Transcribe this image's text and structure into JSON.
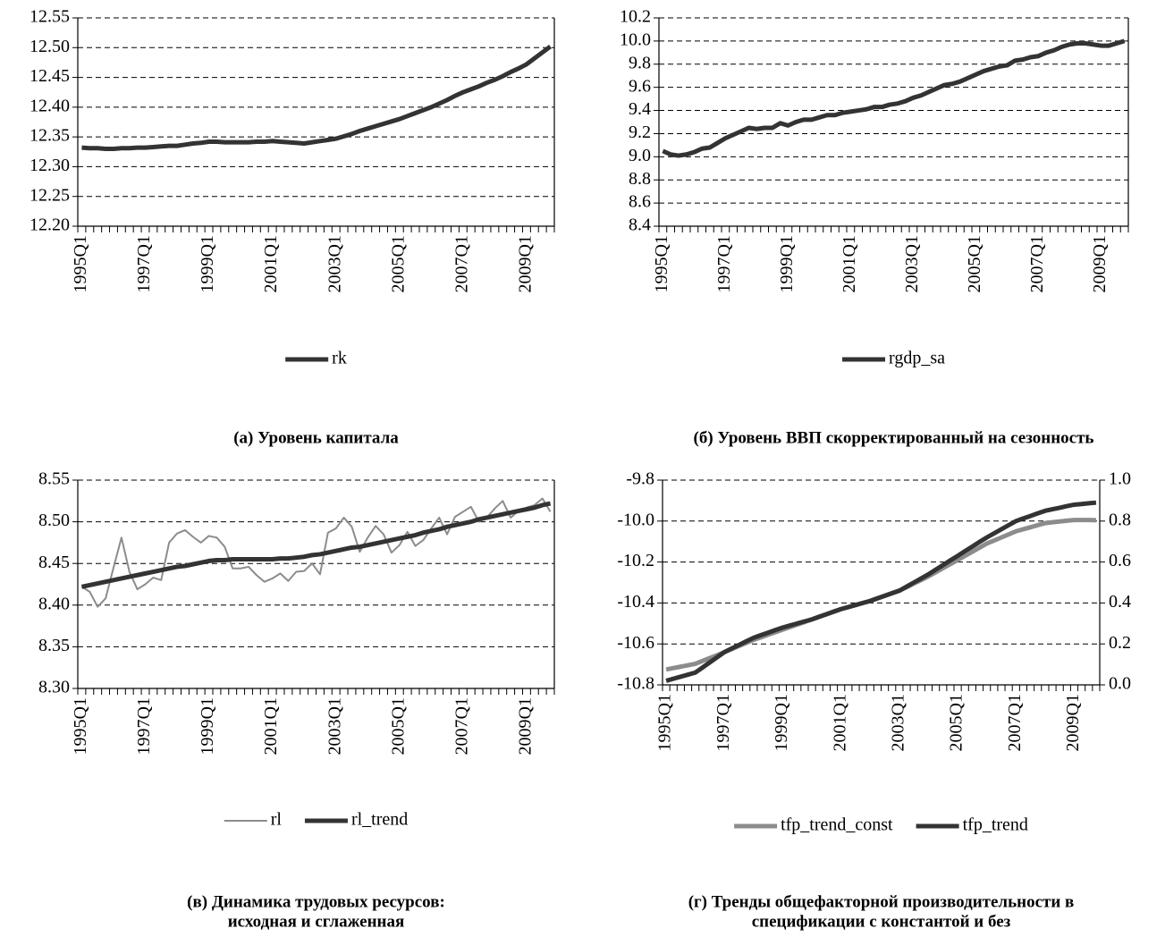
{
  "chart_data": [
    {
      "type": "line",
      "caption": [
        "(а) Уровень капитала"
      ],
      "categories": [
        "1995Q1",
        null,
        null,
        null,
        null,
        null,
        null,
        null,
        "1997Q1",
        null,
        null,
        null,
        null,
        null,
        null,
        null,
        "1999Q1",
        null,
        null,
        null,
        null,
        null,
        null,
        null,
        "2001Q1",
        null,
        null,
        null,
        null,
        null,
        null,
        null,
        "2003Q1",
        null,
        null,
        null,
        null,
        null,
        null,
        null,
        "2005Q1",
        null,
        null,
        null,
        null,
        null,
        null,
        null,
        "2007Q1",
        null,
        null,
        null,
        null,
        null,
        null,
        null,
        "2009Q1",
        null,
        null,
        null
      ],
      "ylim": [
        12.2,
        12.55
      ],
      "yticks": [
        {
          "value": 12.2,
          "label": "12.20"
        },
        12.25,
        {
          "value": 12.3,
          "label": "12.30"
        },
        12.35,
        {
          "value": 12.4,
          "label": "12.40"
        },
        12.45,
        {
          "value": 12.5,
          "label": "12.50"
        },
        12.55
      ],
      "grid": true,
      "legend": "bottom",
      "series": [
        {
          "name": "rk",
          "color": "#333333",
          "values": [
            12.332,
            12.331,
            12.331,
            12.33,
            12.33,
            12.331,
            12.331,
            12.332,
            12.332,
            12.333,
            12.334,
            12.335,
            12.335,
            12.337,
            12.339,
            12.34,
            12.342,
            12.342,
            12.341,
            12.341,
            12.341,
            12.341,
            12.342,
            12.342,
            12.343,
            12.342,
            12.341,
            12.34,
            12.339,
            12.341,
            12.343,
            12.345,
            12.347,
            12.351,
            12.355,
            12.36,
            12.364,
            12.368,
            12.372,
            12.376,
            12.38,
            12.385,
            12.39,
            12.395,
            12.4,
            12.406,
            12.412,
            12.419,
            12.425,
            12.43,
            12.435,
            12.441,
            12.446,
            12.452,
            12.459,
            12.465,
            12.472,
            12.482,
            12.492,
            12.502
          ]
        }
      ]
    },
    {
      "type": "line",
      "caption": [
        "(б) Уровень ВВП скорректированный на сезонность"
      ],
      "categories": [
        "1995Q1",
        null,
        null,
        null,
        null,
        null,
        null,
        null,
        "1997Q1",
        null,
        null,
        null,
        null,
        null,
        null,
        null,
        "1999Q1",
        null,
        null,
        null,
        null,
        null,
        null,
        null,
        "2001Q1",
        null,
        null,
        null,
        null,
        null,
        null,
        null,
        "2003Q1",
        null,
        null,
        null,
        null,
        null,
        null,
        null,
        "2005Q1",
        null,
        null,
        null,
        null,
        null,
        null,
        null,
        "2007Q1",
        null,
        null,
        null,
        null,
        null,
        null,
        null,
        "2009Q1",
        null,
        null,
        null
      ],
      "ylim": [
        8.4,
        10.2
      ],
      "yticks": [
        8.4,
        8.6,
        8.8,
        {
          "value": 9,
          "label": "9.0"
        },
        9.2,
        9.4,
        9.6,
        9.8,
        {
          "value": 10,
          "label": "10.0"
        },
        10.2
      ],
      "grid": true,
      "legend": "bottom",
      "series": [
        {
          "name": "rgdp_sa",
          "color": "#333333",
          "values": [
            9.05,
            9.02,
            9.01,
            9.02,
            9.04,
            9.07,
            9.08,
            9.12,
            9.16,
            9.19,
            9.22,
            9.25,
            9.24,
            9.25,
            9.25,
            9.29,
            9.27,
            9.3,
            9.32,
            9.32,
            9.34,
            9.36,
            9.36,
            9.38,
            9.39,
            9.4,
            9.41,
            9.43,
            9.43,
            9.45,
            9.46,
            9.48,
            9.51,
            9.53,
            9.56,
            9.59,
            9.62,
            9.63,
            9.65,
            9.68,
            9.71,
            9.74,
            9.76,
            9.78,
            9.79,
            9.83,
            9.84,
            9.86,
            9.87,
            9.9,
            9.92,
            9.95,
            9.97,
            9.98,
            9.98,
            9.97,
            9.96,
            9.96,
            9.98,
            10.0
          ]
        }
      ]
    },
    {
      "type": "line",
      "caption": [
        "(в) Динамика трудовых ресурсов:",
        "исходная и сглаженная"
      ],
      "categories": [
        "1995Q1",
        null,
        null,
        null,
        null,
        null,
        null,
        null,
        "1997Q1",
        null,
        null,
        null,
        null,
        null,
        null,
        null,
        "1999Q1",
        null,
        null,
        null,
        null,
        null,
        null,
        null,
        "2001Q1",
        null,
        null,
        null,
        null,
        null,
        null,
        null,
        "2003Q1",
        null,
        null,
        null,
        null,
        null,
        null,
        null,
        "2005Q1",
        null,
        null,
        null,
        null,
        null,
        null,
        null,
        "2007Q1",
        null,
        null,
        null,
        null,
        null,
        null,
        null,
        "2009Q1",
        null,
        null,
        null
      ],
      "ylim": [
        8.3,
        8.55
      ],
      "yticks": [
        {
          "value": 8.3,
          "label": "8.30"
        },
        8.35,
        {
          "value": 8.4,
          "label": "8.40"
        },
        8.45,
        {
          "value": 8.5,
          "label": "8.50"
        },
        8.55
      ],
      "grid": true,
      "legend": "bottom",
      "series": [
        {
          "name": "rl",
          "color": "#8c8c8c",
          "values": [
            8.422,
            8.416,
            8.398,
            8.408,
            8.445,
            8.481,
            8.44,
            8.419,
            8.425,
            8.433,
            8.43,
            8.475,
            8.486,
            8.49,
            8.482,
            8.475,
            8.483,
            8.481,
            8.47,
            8.444,
            8.444,
            8.446,
            8.436,
            8.428,
            8.432,
            8.438,
            8.429,
            8.44,
            8.441,
            8.45,
            8.437,
            8.487,
            8.492,
            8.505,
            8.494,
            8.464,
            8.481,
            8.495,
            8.485,
            8.463,
            8.472,
            8.488,
            8.471,
            8.478,
            8.492,
            8.505,
            8.485,
            8.506,
            8.512,
            8.518,
            8.5,
            8.505,
            8.516,
            8.525,
            8.505,
            8.513,
            8.517,
            8.52,
            8.528,
            8.512
          ]
        },
        {
          "name": "rl_trend",
          "color": "#333333",
          "values": [
            8.422,
            8.424,
            8.426,
            8.428,
            8.43,
            8.432,
            8.434,
            8.436,
            8.438,
            8.44,
            8.442,
            8.444,
            8.446,
            8.447,
            8.449,
            8.451,
            8.453,
            8.454,
            8.454,
            8.455,
            8.455,
            8.455,
            8.455,
            8.455,
            8.455,
            8.456,
            8.456,
            8.457,
            8.458,
            8.46,
            8.461,
            8.463,
            8.465,
            8.467,
            8.469,
            8.47,
            8.472,
            8.474,
            8.476,
            8.478,
            8.48,
            8.482,
            8.484,
            8.487,
            8.489,
            8.491,
            8.494,
            8.496,
            8.498,
            8.5,
            8.503,
            8.505,
            8.507,
            8.509,
            8.511,
            8.513,
            8.515,
            8.517,
            8.52,
            8.522
          ]
        }
      ]
    },
    {
      "type": "line",
      "caption": [
        "(г) Тренды общефакторной производительности в",
        "спецификации с константой и без"
      ],
      "categories": [
        "1995Q1",
        null,
        null,
        null,
        null,
        null,
        null,
        null,
        "1997Q1",
        null,
        null,
        null,
        null,
        null,
        null,
        null,
        "1999Q1",
        null,
        null,
        null,
        null,
        null,
        null,
        null,
        "2001Q1",
        null,
        null,
        null,
        null,
        null,
        null,
        null,
        "2003Q1",
        null,
        null,
        null,
        null,
        null,
        null,
        null,
        "2005Q1",
        null,
        null,
        null,
        null,
        null,
        null,
        null,
        "2007Q1",
        null,
        null,
        null,
        null,
        null,
        null,
        null,
        "2009Q1",
        null,
        null,
        null
      ],
      "ylim": [
        -10.8,
        -9.8
      ],
      "yticks": [
        -10.8,
        -10.6,
        -10.4,
        -10.2,
        {
          "value": -10,
          "label": "-10.0"
        },
        -9.8
      ],
      "y2lim": [
        0,
        1
      ],
      "y2ticks": [
        {
          "value": 0,
          "label": "0.0"
        },
        0.2,
        0.4,
        0.6,
        0.8,
        {
          "value": 1,
          "label": "1.0"
        }
      ],
      "grid": true,
      "legend": "bottom",
      "series": [
        {
          "name": "tfp_trend_const",
          "color": "#8c8c8c",
          "values": [
            -10.725,
            -10.718,
            -10.711,
            -10.704,
            -10.697,
            -10.683,
            -10.669,
            -10.655,
            -10.64,
            -10.625,
            -10.61,
            -10.595,
            -10.58,
            -10.568,
            -10.555,
            -10.543,
            -10.53,
            -10.518,
            -10.505,
            -10.493,
            -10.48,
            -10.468,
            -10.455,
            -10.443,
            -10.43,
            -10.42,
            -10.41,
            -10.4,
            -10.39,
            -10.378,
            -10.365,
            -10.353,
            -10.34,
            -10.323,
            -10.305,
            -10.288,
            -10.27,
            -10.25,
            -10.23,
            -10.21,
            -10.19,
            -10.17,
            -10.15,
            -10.13,
            -10.11,
            -10.095,
            -10.08,
            -10.065,
            -10.05,
            -10.04,
            -10.03,
            -10.02,
            -10.01,
            -10.006,
            -10.002,
            -9.998,
            -9.995,
            -9.995,
            -9.995,
            -9.996
          ]
        },
        {
          "name": "tfp_trend",
          "color": "#333333",
          "axis": "y2",
          "values": [
            0.02,
            0.03,
            0.04,
            0.05,
            0.06,
            0.085,
            0.11,
            0.135,
            0.16,
            0.178,
            0.195,
            0.213,
            0.23,
            0.243,
            0.255,
            0.268,
            0.28,
            0.29,
            0.3,
            0.31,
            0.32,
            0.333,
            0.345,
            0.358,
            0.37,
            0.38,
            0.39,
            0.4,
            0.41,
            0.423,
            0.435,
            0.448,
            0.46,
            0.48,
            0.5,
            0.52,
            0.54,
            0.563,
            0.585,
            0.608,
            0.63,
            0.653,
            0.675,
            0.698,
            0.72,
            0.74,
            0.76,
            0.78,
            0.8,
            0.813,
            0.825,
            0.838,
            0.85,
            0.858,
            0.865,
            0.873,
            0.88,
            0.883,
            0.887,
            0.89
          ]
        }
      ]
    }
  ]
}
